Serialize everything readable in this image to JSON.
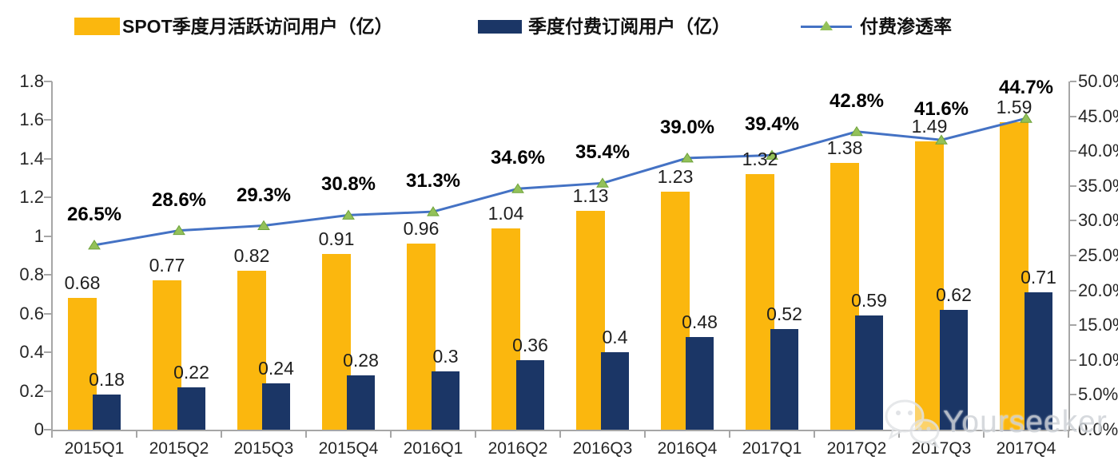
{
  "colors": {
    "bar_mau": "#FBB70E",
    "bar_subs": "#1B3666",
    "line": "#4472C4",
    "marker": "#93C159",
    "marker_edge": "#6FA33C",
    "axis": "#A6A6A6"
  },
  "legend": [
    {
      "label": "SPOT季度月活跃访问用户（亿）",
      "swatch": "yellow-bar-swatch"
    },
    {
      "label": "季度付费订阅用户（亿）",
      "swatch": "navy-bar-swatch"
    },
    {
      "label": "付费渗透率",
      "swatch": "line-marker-swatch"
    }
  ],
  "watermark": {
    "icon": "wechat-icon",
    "text": "Yourseeker"
  },
  "chart_data": {
    "type": "bar",
    "subtype": "combo-bar-line",
    "categories": [
      "2015Q1",
      "2015Q2",
      "2015Q3",
      "2015Q4",
      "2016Q1",
      "2016Q2",
      "2016Q3",
      "2016Q4",
      "2017Q1",
      "2017Q2",
      "2017Q3",
      "2017Q4"
    ],
    "series": [
      {
        "name": "SPOT季度月活跃访问用户（亿）",
        "type": "bar",
        "axis": "left",
        "values": [
          0.68,
          0.77,
          0.82,
          0.91,
          0.96,
          1.04,
          1.13,
          1.23,
          1.32,
          1.38,
          1.49,
          1.59
        ],
        "labels": [
          "0.68",
          "0.77",
          "0.82",
          "0.91",
          "0.96",
          "1.04",
          "1.13",
          "1.23",
          "1.32",
          "1.38",
          "1.49",
          "1.59"
        ]
      },
      {
        "name": "季度付费订阅用户（亿）",
        "type": "bar",
        "axis": "left",
        "values": [
          0.18,
          0.22,
          0.24,
          0.28,
          0.3,
          0.36,
          0.4,
          0.48,
          0.52,
          0.59,
          0.62,
          0.71
        ],
        "labels": [
          "0.18",
          "0.22",
          "0.24",
          "0.28",
          "0.3",
          "0.36",
          "0.4",
          "0.48",
          "0.52",
          "0.59",
          "0.62",
          "0.71"
        ]
      },
      {
        "name": "付费渗透率",
        "type": "line",
        "axis": "right",
        "values": [
          26.5,
          28.6,
          29.3,
          30.8,
          31.3,
          34.6,
          35.4,
          39.0,
          39.4,
          42.8,
          41.6,
          44.7
        ],
        "labels": [
          "26.5%",
          "28.6%",
          "29.3%",
          "30.8%",
          "31.3%",
          "34.6%",
          "35.4%",
          "39.0%",
          "39.4%",
          "42.8%",
          "41.6%",
          "44.7%"
        ]
      }
    ],
    "left_axis": {
      "min": 0,
      "max": 1.8,
      "step": 0.2,
      "labels": [
        "0",
        "0.2",
        "0.4",
        "0.6",
        "0.8",
        "1",
        "1.2",
        "1.4",
        "1.6",
        "1.8"
      ]
    },
    "right_axis": {
      "min": 0,
      "max": 50,
      "step": 5,
      "labels": [
        "0.0%",
        "5.0%",
        "10.0%",
        "15.0%",
        "20.0%",
        "25.0%",
        "30.0%",
        "35.0%",
        "40.0%",
        "45.0%",
        "50.0%"
      ]
    },
    "grid": false,
    "legend_position": "top"
  }
}
